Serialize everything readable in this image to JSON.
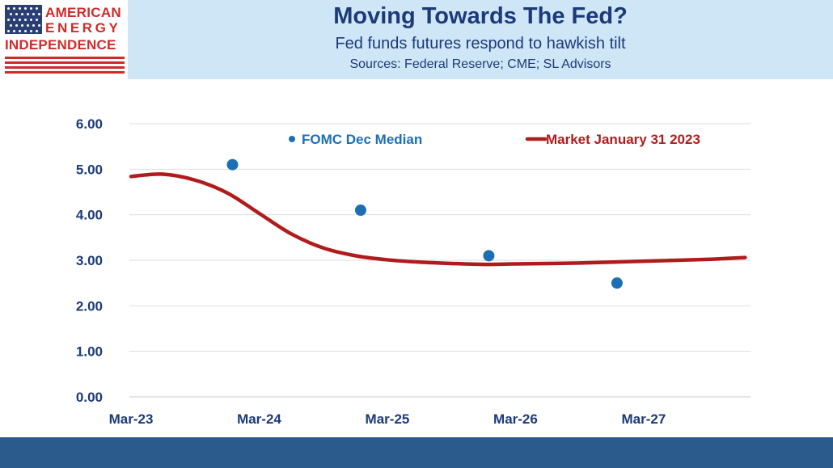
{
  "header": {
    "brand_name": "AMERICAN ENERGY INDEPENDENCE",
    "title": "Moving Towards The Fed?",
    "subtitle": "Fed funds futures respond to hawkish tilt",
    "sources": "Sources: Federal Reserve; CME; SL Advisors"
  },
  "colors": {
    "header_band": "#cfe6f7",
    "title_text": "#1b3a78",
    "brand_red": "#d02a2a",
    "market_line": "#b01c1c",
    "fomc_dots": "#1c6fb5",
    "footer_bar": "#2b5b8c"
  },
  "chart_data": {
    "type": "line",
    "title": "",
    "xlabel": "",
    "ylabel": "",
    "x_ticks": [
      "Mar-23",
      "Mar-24",
      "Mar-25",
      "Mar-26",
      "Mar-27"
    ],
    "y_ticks": [
      "0.00",
      "1.00",
      "2.00",
      "3.00",
      "4.00",
      "5.00",
      "6.00"
    ],
    "ylim": [
      0,
      6
    ],
    "x_unit": "months since Mar-23",
    "xlim": [
      0,
      58
    ],
    "grid": "horizontal",
    "legend_placement": "top",
    "series": [
      {
        "name": "FOMC Dec  Median",
        "kind": "scatter",
        "color": "#1c6fb5",
        "x": [
          9.5,
          21.5,
          33.5,
          45.5
        ],
        "y": [
          5.1,
          4.1,
          3.1,
          2.5
        ]
      },
      {
        "name": "Market January 31 2023",
        "kind": "line",
        "color": "#b01c1c",
        "x": [
          0,
          3,
          6,
          9,
          12,
          15,
          18,
          21,
          24,
          27,
          30,
          33,
          36,
          42,
          48,
          54,
          57.5
        ],
        "y": [
          4.84,
          4.89,
          4.76,
          4.48,
          4.03,
          3.58,
          3.27,
          3.1,
          3.01,
          2.96,
          2.93,
          2.91,
          2.92,
          2.94,
          2.98,
          3.02,
          3.06
        ]
      }
    ]
  }
}
